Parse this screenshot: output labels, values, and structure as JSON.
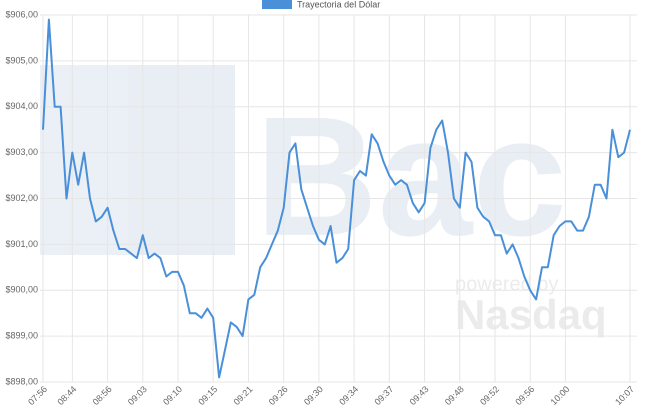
{
  "chart_data": {
    "type": "line",
    "legend_label": "Trayectoria del Dólar",
    "watermark": {
      "brand": "Bac",
      "powered": "powered by",
      "provider": "Nasdaq"
    },
    "categories": [
      "07:56",
      null,
      null,
      null,
      null,
      "08:44",
      null,
      null,
      null,
      null,
      null,
      "08:56",
      null,
      null,
      null,
      null,
      null,
      "09:03",
      null,
      null,
      null,
      null,
      null,
      "09:10",
      null,
      null,
      null,
      null,
      null,
      "09:15",
      null,
      null,
      null,
      null,
      null,
      "09:21",
      null,
      null,
      null,
      null,
      null,
      "09:26",
      null,
      null,
      null,
      null,
      null,
      "09:30",
      null,
      null,
      null,
      null,
      null,
      "09:34",
      null,
      null,
      null,
      null,
      null,
      "09:37",
      null,
      null,
      null,
      null,
      null,
      "09:43",
      null,
      null,
      null,
      null,
      null,
      "09:48",
      null,
      null,
      null,
      null,
      null,
      "09:52",
      null,
      null,
      null,
      null,
      null,
      "09:56",
      null,
      null,
      null,
      null,
      null,
      "10:00",
      null,
      null,
      null,
      null,
      null,
      null,
      null,
      null,
      null,
      null,
      "10:07"
    ],
    "series": [
      {
        "name": "Trayectoria del Dólar",
        "color": "#4a90d9",
        "values": [
          903.5,
          905.9,
          904.0,
          904.0,
          902.0,
          903.0,
          902.3,
          903.0,
          902.0,
          901.5,
          901.6,
          901.8,
          901.3,
          900.9,
          900.9,
          900.8,
          900.7,
          901.2,
          900.7,
          900.8,
          900.7,
          900.3,
          900.4,
          900.4,
          900.1,
          899.5,
          899.5,
          899.4,
          899.6,
          899.4,
          898.1,
          898.7,
          899.3,
          899.2,
          899.0,
          899.8,
          899.9,
          900.5,
          900.7,
          901.0,
          901.3,
          901.8,
          903.0,
          903.2,
          902.2,
          901.8,
          901.4,
          901.1,
          901.0,
          901.4,
          900.6,
          900.7,
          900.9,
          902.4,
          902.6,
          902.5,
          903.4,
          903.2,
          902.8,
          902.5,
          902.3,
          902.4,
          902.3,
          901.9,
          901.7,
          901.9,
          903.1,
          903.5,
          903.7,
          903.0,
          902.0,
          901.8,
          903.0,
          902.8,
          901.8,
          901.6,
          901.5,
          901.2,
          901.2,
          900.8,
          901.0,
          900.7,
          900.3,
          900.0,
          899.8,
          900.5,
          900.5,
          901.2,
          901.4,
          901.5,
          901.5,
          901.3,
          901.3,
          901.6,
          902.3,
          902.3,
          902.0,
          903.5,
          902.9,
          903.0,
          903.5
        ]
      }
    ],
    "ylim": [
      898,
      906
    ],
    "yticks": [
      {
        "value": 898,
        "label": "$898,00"
      },
      {
        "value": 899,
        "label": "$899,00"
      },
      {
        "value": 900,
        "label": "$900,00"
      },
      {
        "value": 901,
        "label": "$901,00"
      },
      {
        "value": 902,
        "label": "$902,00"
      },
      {
        "value": 903,
        "label": "$903,00"
      },
      {
        "value": 904,
        "label": "$904,00"
      },
      {
        "value": 905,
        "label": "$905,00"
      },
      {
        "value": 906,
        "label": "$906,00"
      }
    ],
    "grid": true
  }
}
